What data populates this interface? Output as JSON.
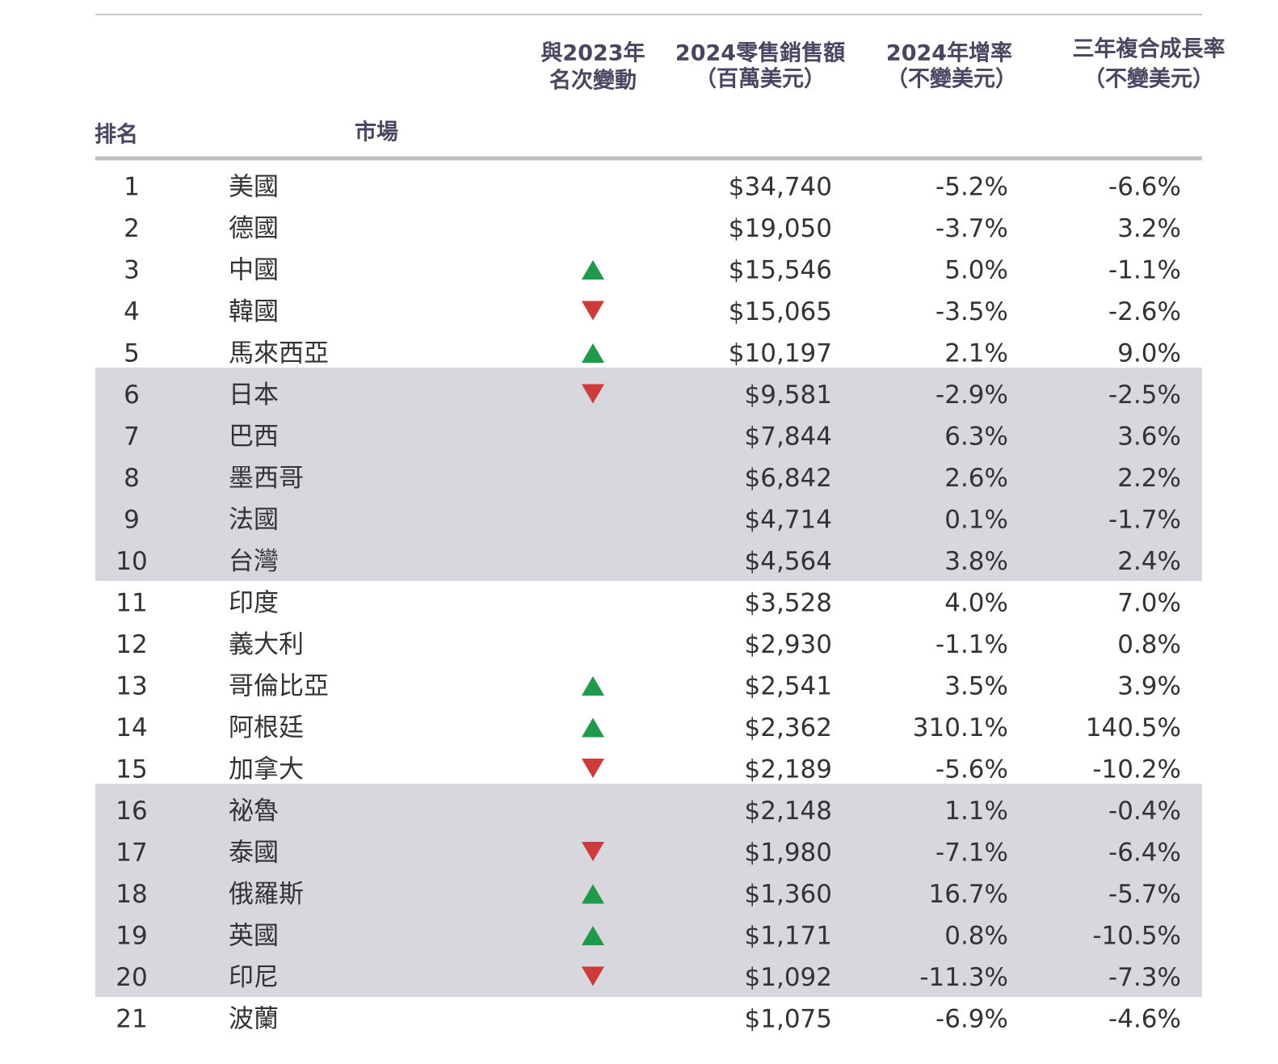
{
  "header": {
    "rank": "排名",
    "market": "市場",
    "change": [
      "與2023年",
      "名次變動"
    ],
    "sales": [
      "2024零售銷售額",
      "（百萬美元）"
    ],
    "growth": [
      "2024年增率",
      "（不變美元）"
    ],
    "cagr": [
      "三年複合成長率",
      "（不變美元）"
    ]
  },
  "table": {
    "rows": [
      {
        "rank": "1",
        "market": "美國",
        "change": null,
        "sales": "$34,740",
        "growth": "-5.2%",
        "cagr": "-6.6%"
      },
      {
        "rank": "2",
        "market": "德國",
        "change": null,
        "sales": "$19,050",
        "growth": "-3.7%",
        "cagr": "3.2%"
      },
      {
        "rank": "3",
        "market": "中國",
        "change": "up",
        "sales": "$15,546",
        "growth": "5.0%",
        "cagr": "-1.1%"
      },
      {
        "rank": "4",
        "market": "韓國",
        "change": "down",
        "sales": "$15,065",
        "growth": "-3.5%",
        "cagr": "-2.6%"
      },
      {
        "rank": "5",
        "market": "馬來西亞",
        "change": "up",
        "sales": "$10,197",
        "growth": "2.1%",
        "cagr": "9.0%"
      },
      {
        "rank": "6",
        "market": "日本",
        "change": "down",
        "sales": "$9,581",
        "growth": "-2.9%",
        "cagr": "-2.5%"
      },
      {
        "rank": "7",
        "market": "巴西",
        "change": null,
        "sales": "$7,844",
        "growth": "6.3%",
        "cagr": "3.6%"
      },
      {
        "rank": "8",
        "market": "墨西哥",
        "change": null,
        "sales": "$6,842",
        "growth": "2.6%",
        "cagr": "2.2%"
      },
      {
        "rank": "9",
        "market": "法國",
        "change": null,
        "sales": "$4,714",
        "growth": "0.1%",
        "cagr": "-1.7%"
      },
      {
        "rank": "10",
        "market": "台灣",
        "change": null,
        "sales": "$4,564",
        "growth": "3.8%",
        "cagr": "2.4%"
      },
      {
        "rank": "11",
        "market": "印度",
        "change": null,
        "sales": "$3,528",
        "growth": "4.0%",
        "cagr": "7.0%"
      },
      {
        "rank": "12",
        "market": "義大利",
        "change": null,
        "sales": "$2,930",
        "growth": "-1.1%",
        "cagr": "0.8%"
      },
      {
        "rank": "13",
        "market": "哥倫比亞",
        "change": "up",
        "sales": "$2,541",
        "growth": "3.5%",
        "cagr": "3.9%"
      },
      {
        "rank": "14",
        "market": "阿根廷",
        "change": "up",
        "sales": "$2,362",
        "growth": "310.1%",
        "cagr": "140.5%"
      },
      {
        "rank": "15",
        "market": "加拿大",
        "change": "down",
        "sales": "$2,189",
        "growth": "-5.6%",
        "cagr": "-10.2%"
      },
      {
        "rank": "16",
        "market": "祕魯",
        "change": null,
        "sales": "$2,148",
        "growth": "1.1%",
        "cagr": "-0.4%"
      },
      {
        "rank": "17",
        "market": "泰國",
        "change": "down",
        "sales": "$1,980",
        "growth": "-7.1%",
        "cagr": "-6.4%"
      },
      {
        "rank": "18",
        "market": "俄羅斯",
        "change": "up",
        "sales": "$1,360",
        "growth": "16.7%",
        "cagr": "-5.7%"
      },
      {
        "rank": "19",
        "market": "英國",
        "change": "up",
        "sales": "$1,171",
        "growth": "0.8%",
        "cagr": "-10.5%"
      },
      {
        "rank": "20",
        "market": "印尼",
        "change": "down",
        "sales": "$1,092",
        "growth": "-11.3%",
        "cagr": "-7.3%"
      },
      {
        "rank": "21",
        "market": "波蘭",
        "change": null,
        "sales": "$1,075",
        "growth": "-6.9%",
        "cagr": "-4.6%"
      }
    ]
  }
}
